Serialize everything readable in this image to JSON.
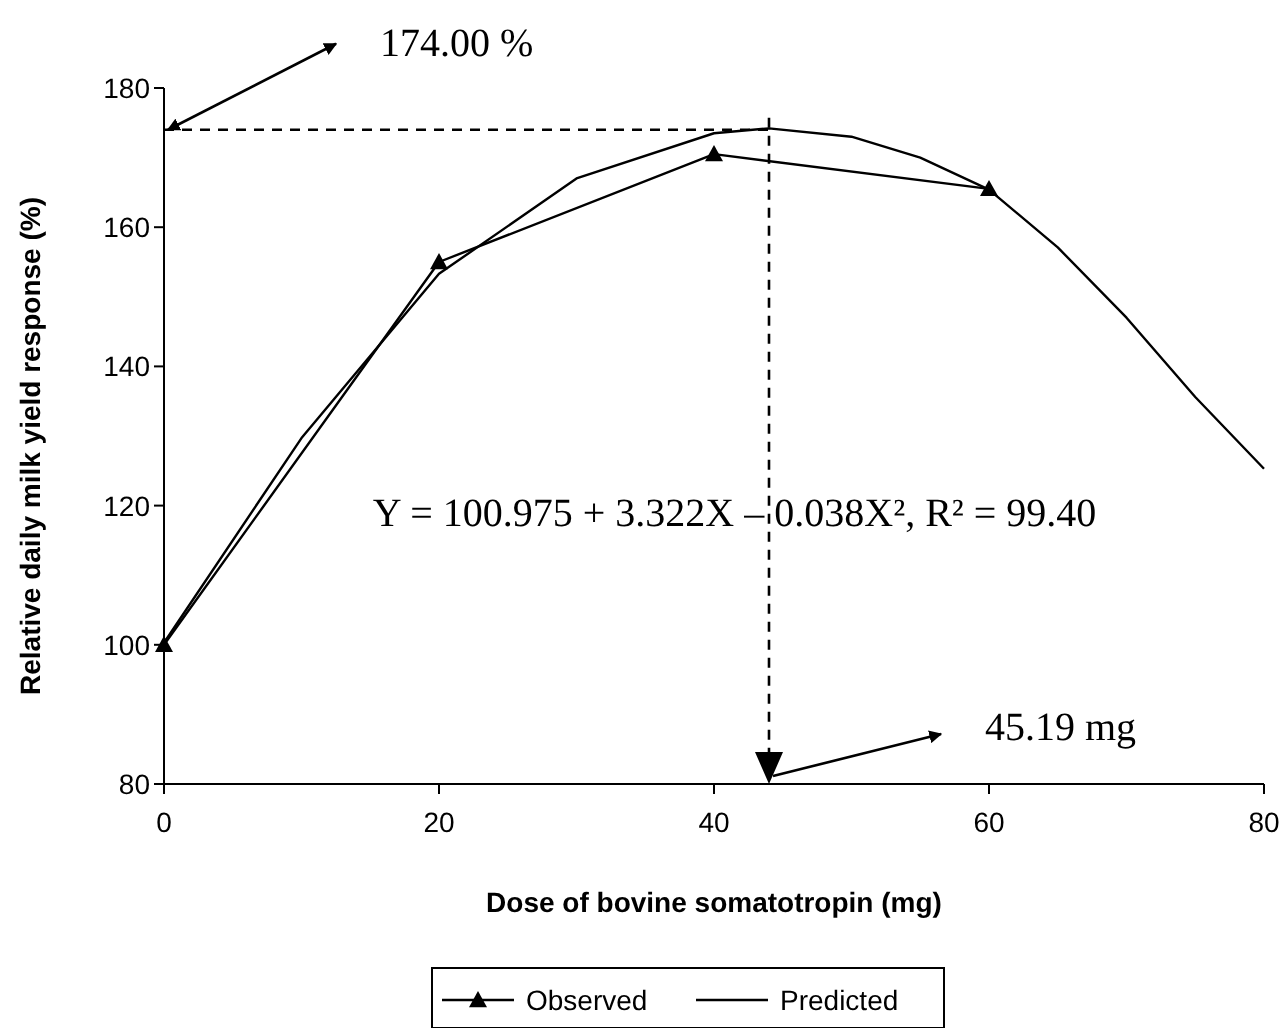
{
  "chart_data": {
    "type": "line",
    "xlabel": "Dose of bovine somatotropin (mg)",
    "ylabel": "Relative daily milk yield response (%)",
    "xlim": [
      0,
      80
    ],
    "xticks": [
      0,
      20,
      40,
      60,
      80
    ],
    "ylim": [
      80,
      180
    ],
    "yticks": [
      80,
      100,
      120,
      140,
      160,
      180
    ],
    "legend": "bottom",
    "series": [
      {
        "name": "Observed",
        "color": "#000000",
        "marker": "triangle",
        "x": [
          0,
          20,
          40,
          60
        ],
        "values": [
          100,
          155,
          170.5,
          165.5
        ]
      },
      {
        "name": "Predicted",
        "color": "#000000",
        "marker": "none",
        "x": [
          0,
          10,
          20,
          30,
          40,
          44,
          50,
          55,
          60,
          65,
          70,
          75,
          80
        ],
        "values": [
          100.3,
          129.7,
          153.3,
          167,
          173.5,
          174.2,
          173,
          170,
          165.4,
          157.1,
          147,
          135.6,
          125.3
        ]
      }
    ],
    "ref_lines": [
      {
        "axis": "y",
        "value": 174,
        "color": "#000000",
        "line_style": "dashed"
      },
      {
        "axis": "x",
        "value": 44,
        "color": "#000000",
        "line_style": "dashed"
      }
    ],
    "annotations": [
      {
        "text": "174.00 %",
        "x": 0,
        "y": 174
      },
      {
        "text": "45.19 mg",
        "x": 44,
        "y": 80
      },
      "Y = 100.975 + 3.322X – 0.038X², R² = 99.40"
    ]
  }
}
